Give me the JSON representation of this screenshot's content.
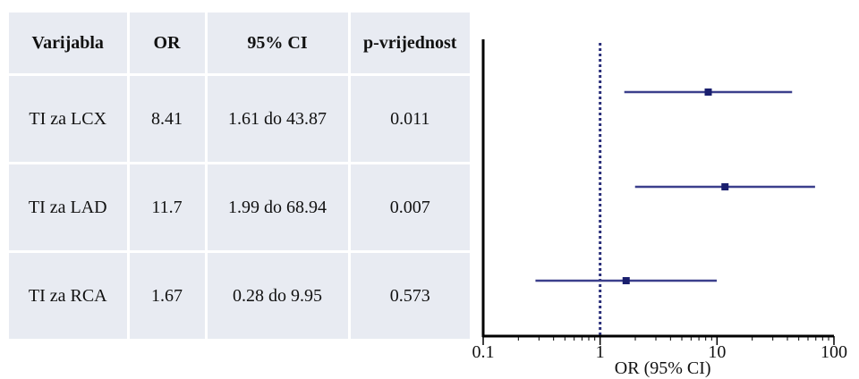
{
  "table": {
    "headers": [
      "Varijabla",
      "OR",
      "95% CI",
      "p-vrijednost"
    ],
    "rows": [
      [
        "TI za LCX",
        "8.41",
        "1.61 do 43.87",
        "0.011"
      ],
      [
        "TI za LAD",
        "11.7",
        "1.99 do 68.94",
        "0.007"
      ],
      [
        "TI za RCA",
        "1.67",
        "0.28 do 9.95",
        "0.573"
      ]
    ]
  },
  "chart_data": {
    "type": "scatter",
    "subtype": "forest-plot",
    "xlabel": "OR (95% CI)",
    "xscale": "log",
    "xlim": [
      0.1,
      100
    ],
    "xticks": [
      "0.1",
      "1",
      "10",
      "100"
    ],
    "reference_line": 1,
    "grid": false,
    "categories": [
      "TI za LCX",
      "TI za LAD",
      "TI za RCA"
    ],
    "values": [
      8.41,
      11.7,
      1.67
    ],
    "ci_lower": [
      1.61,
      1.99,
      0.28
    ],
    "ci_upper": [
      43.87,
      68.94,
      9.95
    ],
    "colors": {
      "line": "#3b3f8c",
      "point": "#1a1f6e",
      "reference": "#2a2f7a",
      "axis": "#000000"
    }
  }
}
